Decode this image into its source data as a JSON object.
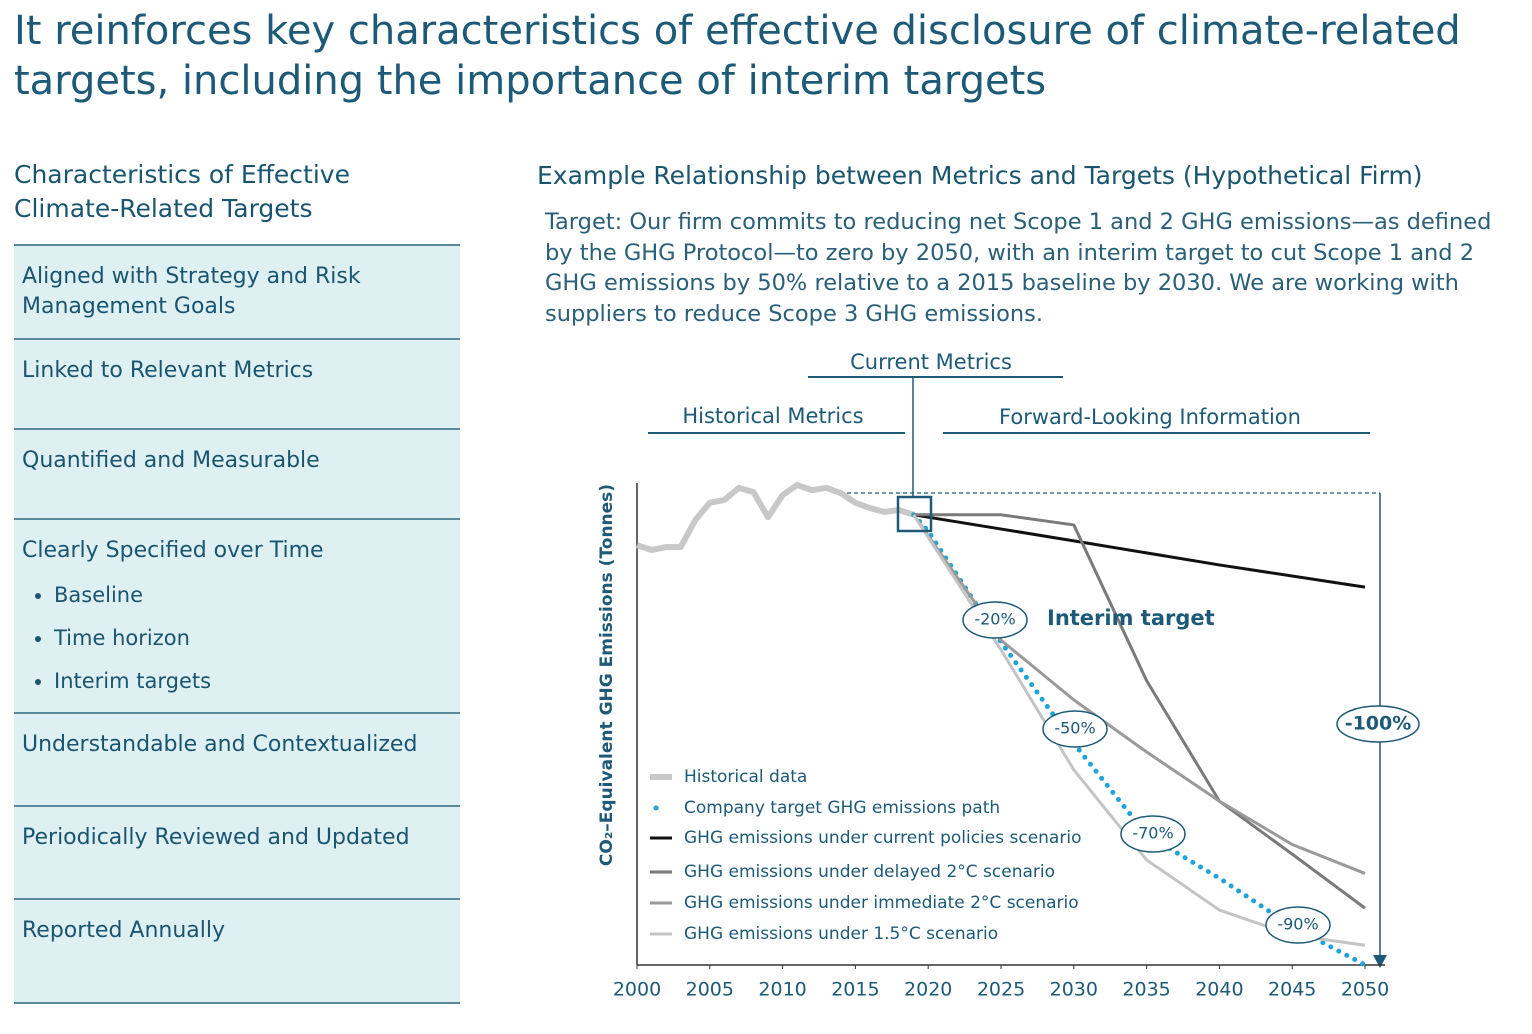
{
  "title": "It reinforces key characteristics of effective disclosure of climate-related targets, including the importance of interim targets",
  "left_panel": {
    "heading": "Characteristics of Effective Climate-Related Targets",
    "items": [
      {
        "text": "Aligned with Strategy and Risk Management Goals"
      },
      {
        "text": "Linked to Relevant Metrics"
      },
      {
        "text": "Quantified and Measurable"
      },
      {
        "text": "Clearly Specified over Time",
        "bullets": [
          "Baseline",
          "Time horizon",
          "Interim targets"
        ]
      },
      {
        "text": "Understandable and Contextualized"
      },
      {
        "text": "Periodically Reviewed and Updated"
      },
      {
        "text": "Reported Annually"
      }
    ]
  },
  "right_panel": {
    "heading": "Example Relationship between Metrics and Targets (Hypothetical Firm)",
    "target_text": "Target: Our firm commits to reducing net Scope 1 and 2 GHG emissions—as defined by the GHG Protocol—to zero by 2050, with an interim target to cut Scope 1 and 2 GHG emissions by 50% relative to a 2015 baseline by 2030. We are working with suppliers to reduce Scope 3 GHG emissions."
  },
  "chart_data": {
    "type": "line",
    "y_label": "CO₂–Equivalent GHG Emissions (Tonnes)",
    "brackets": [
      "Current Metrics",
      "Historical Metrics",
      "Forward-Looking Information"
    ],
    "annotations": [
      "-20%",
      "-50%",
      "-70%",
      "-90%",
      "-100%",
      "Interim target"
    ],
    "xlim": [
      2000,
      2050
    ],
    "xticks": [
      2000,
      2005,
      2010,
      2015,
      2020,
      2025,
      2030,
      2035,
      2040,
      2045,
      2050
    ],
    "ylim": [
      0,
      100
    ],
    "series": [
      {
        "name": "Historical data",
        "color": "#c8c8c8",
        "style": "thick",
        "x": [
          2000,
          2001,
          2002,
          2003,
          2004,
          2005,
          2006,
          2007,
          2008,
          2009,
          2010,
          2011,
          2012,
          2013,
          2014,
          2015,
          2016,
          2017,
          2018,
          2019
        ],
        "values": [
          87.1,
          86.1,
          86.7,
          86.7,
          92.3,
          95.9,
          96.5,
          99.0,
          98.1,
          92.9,
          97.5,
          99.6,
          98.5,
          99.0,
          97.9,
          95.9,
          94.8,
          94.0,
          94.4,
          93.4
        ]
      },
      {
        "name": "Company target GHG emissions path",
        "color": "#1fa3d8",
        "style": "dotted",
        "x": [
          2019,
          2020,
          2025,
          2030,
          2035,
          2040,
          2045,
          2050
        ],
        "values": [
          93.4,
          90,
          67,
          46,
          27,
          18,
          8,
          0
        ]
      },
      {
        "name": "GHG emissions under current policies scenario",
        "color": "#111111",
        "style": "solid",
        "x": [
          2019,
          2030,
          2040,
          2050
        ],
        "values": [
          93.4,
          88,
          83,
          78.4
        ]
      },
      {
        "name": "GHG emissions under delayed 2°C scenario",
        "color": "#7a7a7a",
        "style": "solid",
        "x": [
          2019,
          2025,
          2030,
          2035,
          2040,
          2045,
          2050
        ],
        "values": [
          93.4,
          93.4,
          91.3,
          59,
          34,
          23,
          11.8
        ]
      },
      {
        "name": "GHG emissions under immediate 2°C scenario",
        "color": "#9a9a9a",
        "style": "solid",
        "x": [
          2019,
          2025,
          2030,
          2035,
          2040,
          2045,
          2050
        ],
        "values": [
          93.4,
          67.4,
          55,
          44.2,
          34,
          25,
          19
        ]
      },
      {
        "name": "GHG emissions under 1.5°C scenario",
        "color": "#c4c4c4",
        "style": "solid",
        "x": [
          2019,
          2025,
          2030,
          2035,
          2040,
          2045,
          2050
        ],
        "values": [
          93.4,
          65.4,
          40.5,
          21.8,
          11.4,
          6.2,
          4.1
        ]
      }
    ]
  }
}
